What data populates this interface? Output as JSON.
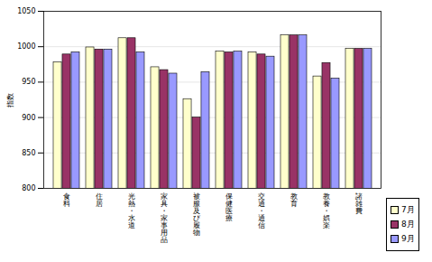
{
  "chart_data": {
    "type": "bar",
    "y_label": "指数",
    "categories": [
      "食料",
      "住居",
      "光熱・水道",
      "家具・家事用品",
      "被服及び履物",
      "保健医療",
      "交通・通信",
      "教育",
      "教養・娯楽",
      "諸雑費"
    ],
    "series": [
      {
        "name": "7月",
        "color": "#FFFFCC",
        "values": [
          978,
          999,
          1012,
          971,
          926,
          993,
          992,
          1016,
          958,
          997
        ]
      },
      {
        "name": "8月",
        "color": "#993366",
        "values": [
          989,
          996,
          1012,
          967,
          900,
          992,
          989,
          1016,
          977,
          997
        ]
      },
      {
        "name": "9月",
        "color": "#9999FF",
        "values": [
          992,
          996,
          992,
          962,
          964,
          993,
          986,
          1016,
          955,
          997
        ]
      }
    ],
    "ylim": [
      800,
      1050
    ],
    "yticks": [
      800,
      850,
      900,
      950,
      1000,
      1050
    ],
    "grid": true,
    "legend": "bottom-right"
  }
}
